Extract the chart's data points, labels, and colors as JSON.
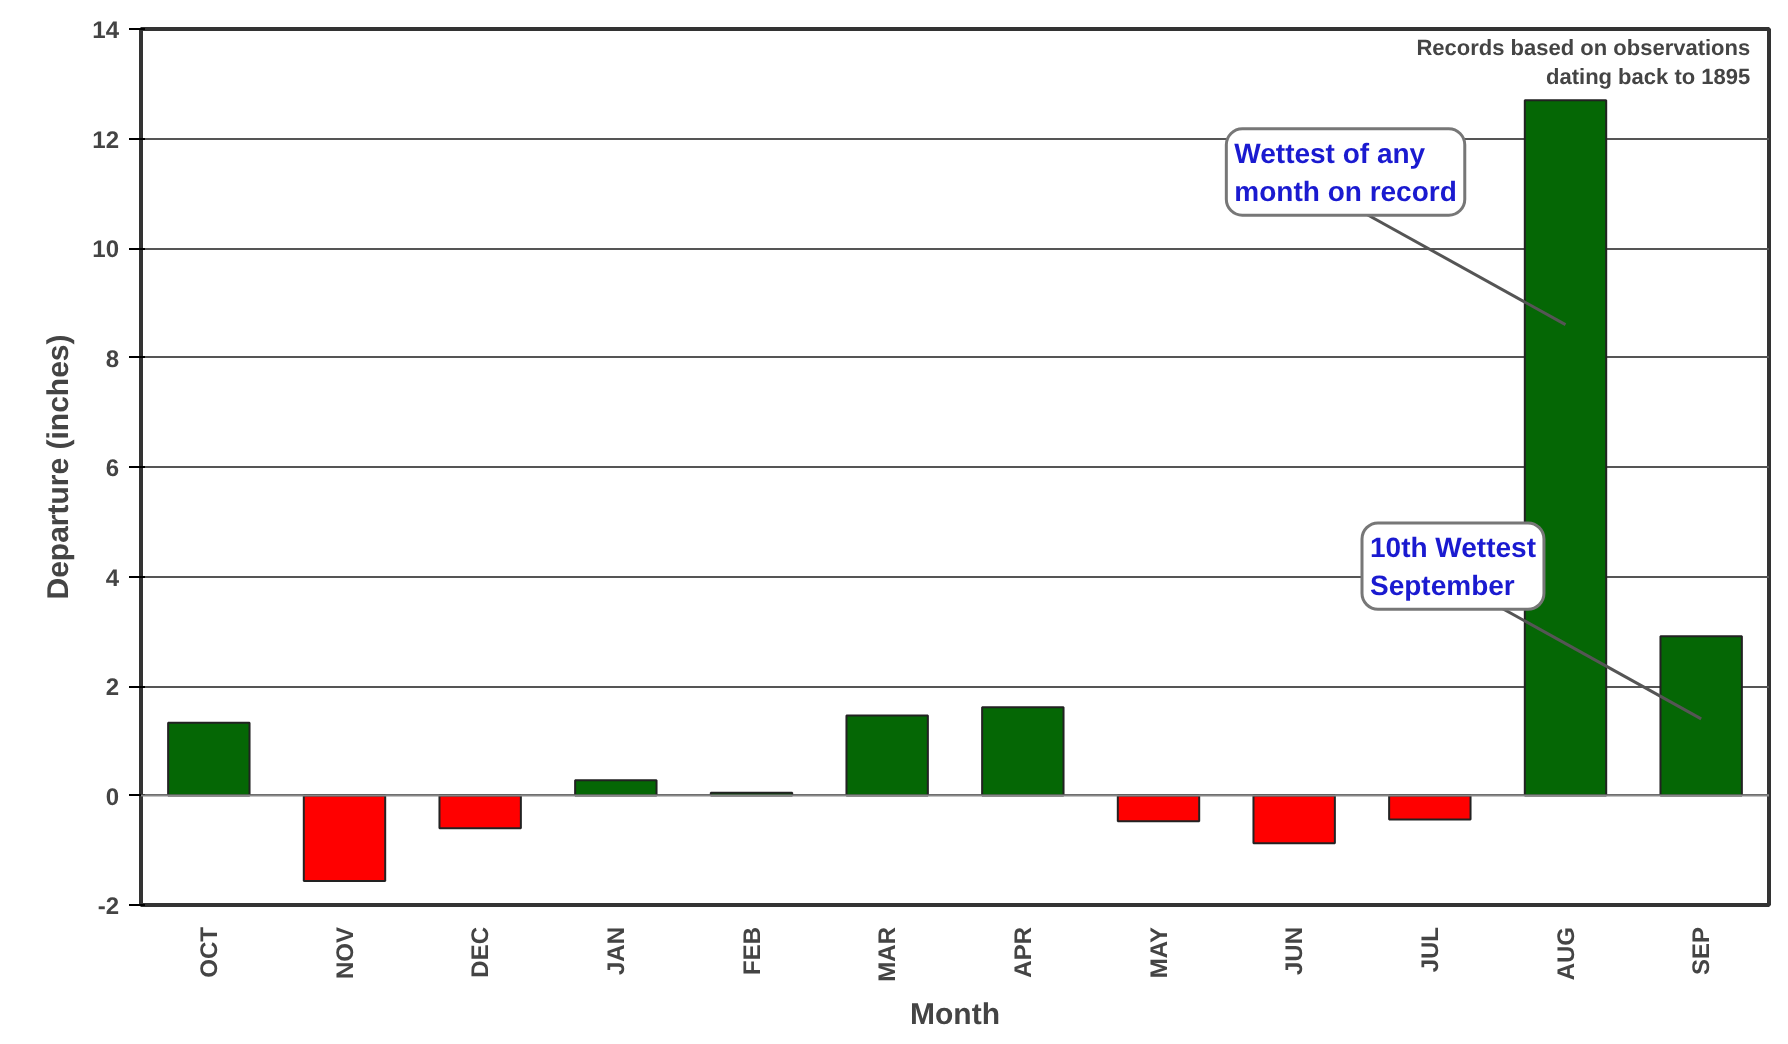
{
  "chart_data": {
    "type": "bar",
    "xlabel": "Month",
    "ylabel": "Departure (inches)",
    "categories": [
      "OCT",
      "NOV",
      "DEC",
      "JAN",
      "FEB",
      "MAR",
      "APR",
      "MAY",
      "JUN",
      "JUL",
      "AUG",
      "SEP"
    ],
    "values": [
      1.33,
      -1.56,
      -0.6,
      0.28,
      0.05,
      1.46,
      1.61,
      -0.47,
      -0.87,
      -0.44,
      12.7,
      2.91
    ],
    "colors": [
      "#056705",
      "#ff0000",
      "#ff0000",
      "#056705",
      "#056705",
      "#056705",
      "#056705",
      "#ff0000",
      "#ff0000",
      "#ff0000",
      "#056705",
      "#056705"
    ],
    "ylim": [
      -2,
      14
    ],
    "yticks": [
      -2,
      0,
      2,
      4,
      6,
      8,
      10,
      12,
      14
    ],
    "grid": "y",
    "annotations": [
      "Records based on observations dating back to 1895",
      "Wettest of any month on record",
      "10th Wettest September"
    ]
  }
}
